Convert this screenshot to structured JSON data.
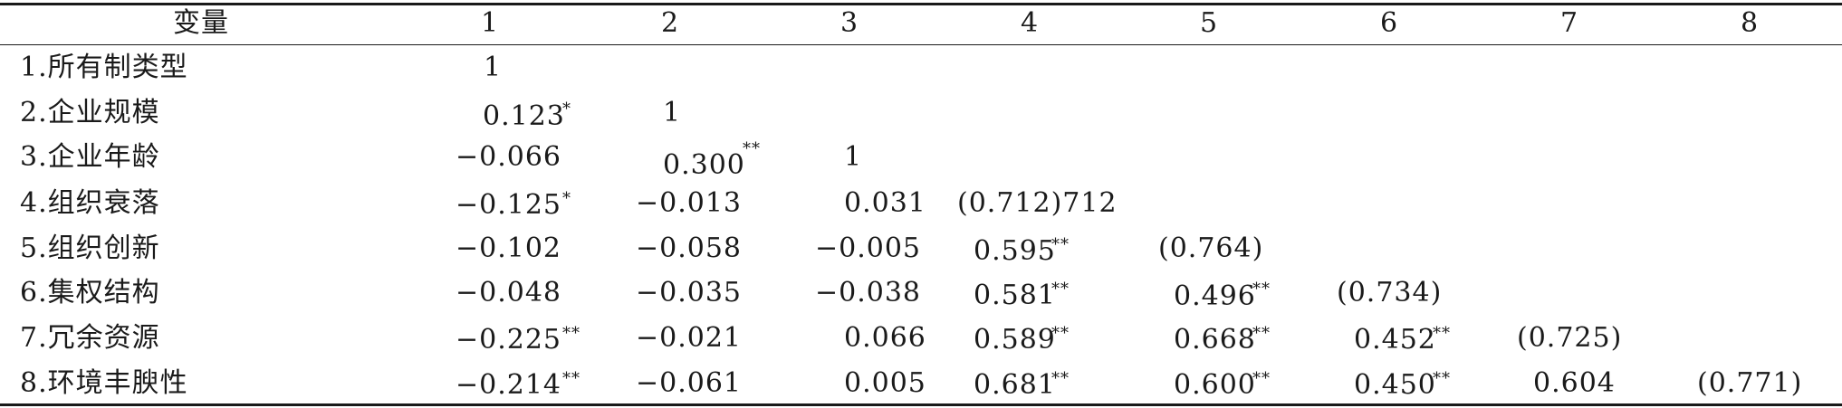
{
  "table": {
    "header": [
      "变量",
      "1",
      "2",
      "3",
      "4",
      "5",
      "6",
      "7",
      "8"
    ],
    "rows": [
      {
        "label": "1.所有制类型",
        "cells": [
          {
            "v": "1",
            "s": ""
          }
        ]
      },
      {
        "label": "2.企业规模",
        "cells": [
          {
            "v": "0.123",
            "s": "*"
          },
          {
            "v": "1",
            "s": ""
          }
        ]
      },
      {
        "label": "3.企业年龄",
        "cells": [
          {
            "v": "−0.066",
            "s": ""
          },
          {
            "v": "0.300",
            "s": "**"
          },
          {
            "v": "1",
            "s": ""
          }
        ]
      },
      {
        "label": "4.组织衰落",
        "cells": [
          {
            "v": "−0.125",
            "s": "*"
          },
          {
            "v": "−0.013",
            "s": ""
          },
          {
            "v": "0.031",
            "s": ""
          },
          {
            "v": "(0.712)712",
            "s": ""
          }
        ]
      },
      {
        "label": "5.组织创新",
        "cells": [
          {
            "v": "−0.102",
            "s": ""
          },
          {
            "v": "−0.058",
            "s": ""
          },
          {
            "v": "−0.005",
            "s": ""
          },
          {
            "v": "0.595",
            "s": "**"
          },
          {
            "v": "(0.764)",
            "s": ""
          }
        ]
      },
      {
        "label": "6.集权结构",
        "cells": [
          {
            "v": "−0.048",
            "s": ""
          },
          {
            "v": "−0.035",
            "s": ""
          },
          {
            "v": "−0.038",
            "s": ""
          },
          {
            "v": "0.581",
            "s": "**"
          },
          {
            "v": "0.496",
            "s": "**"
          },
          {
            "v": "(0.734)",
            "s": ""
          }
        ]
      },
      {
        "label": "7.冗余资源",
        "cells": [
          {
            "v": "−0.225",
            "s": "**"
          },
          {
            "v": "−0.021",
            "s": ""
          },
          {
            "v": "0.066",
            "s": ""
          },
          {
            "v": "0.589",
            "s": "**"
          },
          {
            "v": "0.668",
            "s": "**"
          },
          {
            "v": "0.452",
            "s": "**"
          },
          {
            "v": "(0.725)",
            "s": ""
          }
        ]
      },
      {
        "label": "8.环境丰腴性",
        "cells": [
          {
            "v": "−0.214",
            "s": "**"
          },
          {
            "v": "−0.061",
            "s": ""
          },
          {
            "v": "0.005",
            "s": ""
          },
          {
            "v": "0.681",
            "s": "**"
          },
          {
            "v": "0.600",
            "s": "**"
          },
          {
            "v": "0.450",
            "s": "**"
          },
          {
            "v": "0.604",
            "s": ""
          },
          {
            "v": "(0.771)",
            "s": ""
          }
        ]
      }
    ]
  }
}
